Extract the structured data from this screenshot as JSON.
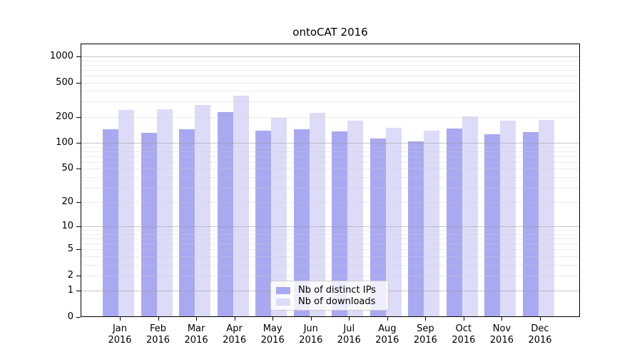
{
  "chart_data": {
    "type": "bar",
    "title": "ontoCAT 2016",
    "scale": "log1p",
    "categories": [
      "Jan",
      "Feb",
      "Mar",
      "Apr",
      "May",
      "Jun",
      "Jul",
      "Aug",
      "Sep",
      "Oct",
      "Nov",
      "Dec"
    ],
    "category_year": "2016",
    "series": [
      {
        "name": "Nb of distinct IPs",
        "color": "#a9a9f2",
        "values": [
          145,
          130,
          145,
          228,
          140,
          143,
          135,
          113,
          105,
          148,
          127,
          133
        ]
      },
      {
        "name": "Nb of downloads",
        "color": "#dcdcf9",
        "values": [
          240,
          245,
          275,
          350,
          195,
          225,
          182,
          150,
          140,
          202,
          180,
          183
        ]
      }
    ],
    "y_ticks": [
      0,
      1,
      2,
      5,
      10,
      20,
      50,
      100,
      200,
      500,
      1000
    ],
    "y_axis_top_value": 1406,
    "ylabel": "",
    "xlabel": "",
    "grid": {
      "major_color": "#999999",
      "minor_color": "#cccccc"
    },
    "legend_position": "lower center",
    "frame_color": "#000000",
    "background_color": "#ffffff"
  }
}
